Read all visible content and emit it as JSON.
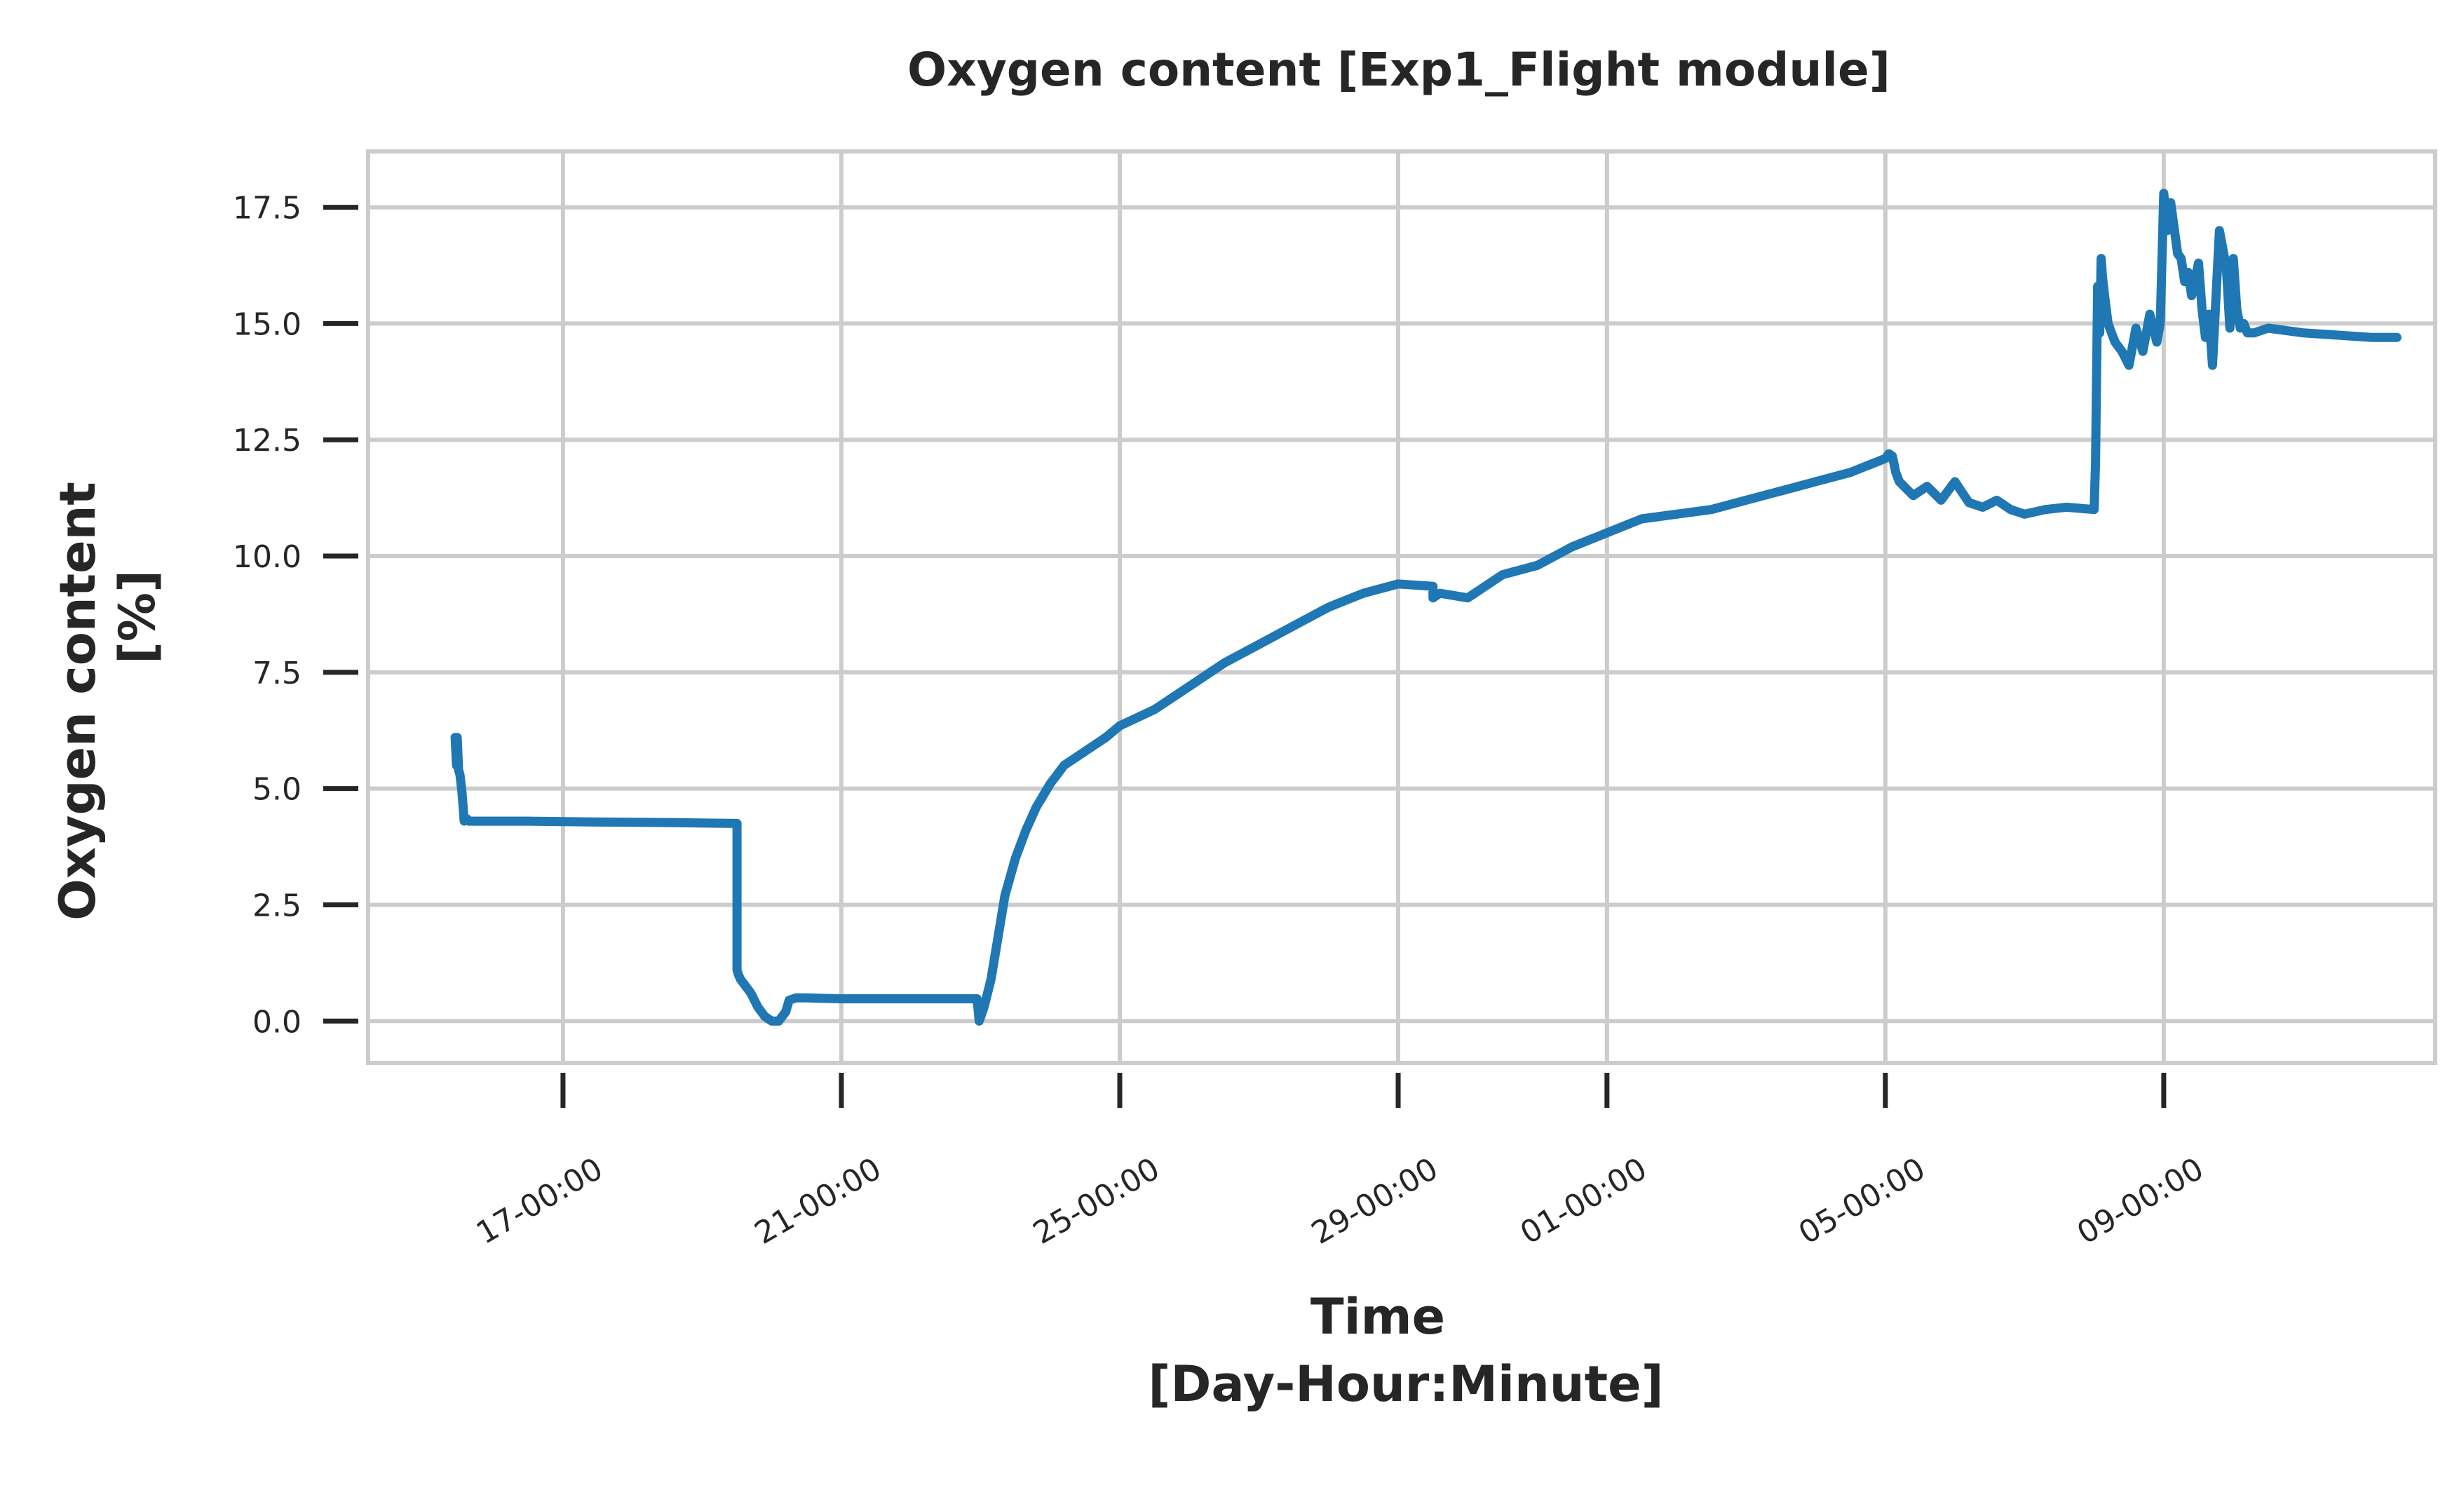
{
  "chart_data": {
    "type": "line",
    "title": "Oxygen content [Exp1_Flight module]",
    "xlabel_lines": [
      "Time",
      "[Day-Hour:Minute]"
    ],
    "ylabel_lines": [
      "Oxygen content",
      "[%]"
    ],
    "x_unit": "day of month (continuous, e.g. 17 = 17-00:00)",
    "xlim": [
      14.2,
      43.9
    ],
    "ylim": [
      -0.9,
      18.7
    ],
    "grid": true,
    "legend": "none",
    "line_color": "#1f77b4",
    "x_ticks": [
      {
        "value": 17,
        "label": "17-00:00"
      },
      {
        "value": 21,
        "label": "21-00:00"
      },
      {
        "value": 25,
        "label": "25-00:00"
      },
      {
        "value": 29,
        "label": "29-00:00"
      },
      {
        "value": 32,
        "label": "01-00:00"
      },
      {
        "value": 36,
        "label": "05-00:00"
      },
      {
        "value": 40,
        "label": "09-00:00"
      }
    ],
    "y_ticks": [
      {
        "value": 0.0,
        "label": "0.0"
      },
      {
        "value": 2.5,
        "label": "2.5"
      },
      {
        "value": 5.0,
        "label": "5.0"
      },
      {
        "value": 7.5,
        "label": "7.5"
      },
      {
        "value": 10.0,
        "label": "10.0"
      },
      {
        "value": 12.5,
        "label": "12.5"
      },
      {
        "value": 15.0,
        "label": "15.0"
      },
      {
        "value": 17.5,
        "label": "17.5"
      }
    ],
    "series": [
      {
        "x": [
          15.45,
          15.47,
          15.48,
          15.5,
          15.52,
          15.55,
          15.58,
          15.62,
          15.65,
          16.5,
          17.5,
          18.5,
          19.5,
          19.5,
          19.52,
          19.55,
          19.7,
          19.8,
          19.9,
          20.0,
          20.1,
          20.2,
          20.25,
          20.35,
          20.5,
          21.0,
          22.0,
          22.95,
          22.98,
          23.05,
          23.15,
          23.25,
          23.35,
          23.5,
          23.65,
          23.8,
          24.0,
          24.2,
          24.5,
          24.8,
          25.0,
          25.5,
          26.0,
          26.5,
          27.0,
          27.5,
          28.0,
          28.5,
          29.0,
          29.5,
          29.5,
          29.6,
          30.0,
          30.5,
          31.0,
          31.5,
          32.0,
          32.5,
          33.0,
          33.5,
          34.0,
          34.5,
          35.0,
          35.5,
          36.0,
          36.05,
          36.1,
          36.15,
          36.2,
          36.4,
          36.6,
          36.8,
          37.0,
          37.2,
          37.4,
          37.6,
          37.8,
          38.0,
          38.3,
          38.6,
          39.0,
          39.02,
          39.05,
          39.08,
          39.1,
          39.12,
          39.15,
          39.2,
          39.25,
          39.3,
          39.4,
          39.5,
          39.6,
          39.7,
          39.8,
          39.9,
          39.95,
          40.0,
          40.05,
          40.1,
          40.2,
          40.25,
          40.3,
          40.35,
          40.4,
          40.5,
          40.55,
          40.6,
          40.65,
          40.7,
          40.8,
          40.9,
          40.95,
          41.0,
          41.05,
          41.1,
          41.15,
          41.2,
          41.3,
          41.5,
          42.0,
          42.5,
          43.0,
          43.35
        ],
        "y": [
          6.1,
          5.5,
          6.1,
          5.4,
          5.3,
          4.9,
          4.3,
          4.35,
          4.3,
          4.3,
          4.28,
          4.27,
          4.25,
          1.1,
          1.0,
          0.9,
          0.6,
          0.3,
          0.1,
          0.0,
          0.0,
          0.2,
          0.45,
          0.5,
          0.5,
          0.48,
          0.48,
          0.48,
          0.0,
          0.3,
          0.9,
          1.8,
          2.7,
          3.5,
          4.1,
          4.6,
          5.1,
          5.5,
          5.8,
          6.1,
          6.35,
          6.7,
          7.2,
          7.7,
          8.1,
          8.5,
          8.9,
          9.2,
          9.4,
          9.35,
          9.1,
          9.2,
          9.1,
          9.6,
          9.8,
          10.2,
          10.5,
          10.8,
          10.9,
          11.0,
          11.2,
          11.4,
          11.6,
          11.8,
          12.1,
          12.2,
          12.15,
          11.8,
          11.6,
          11.3,
          11.5,
          11.2,
          11.6,
          11.15,
          11.05,
          11.2,
          11.0,
          10.9,
          11.0,
          11.05,
          11.0,
          12.0,
          15.8,
          14.8,
          16.4,
          16.0,
          15.6,
          15.0,
          14.8,
          14.6,
          14.4,
          14.1,
          14.9,
          14.4,
          15.2,
          14.6,
          15.0,
          17.8,
          17.0,
          17.6,
          16.5,
          16.4,
          15.9,
          16.1,
          15.6,
          16.3,
          15.3,
          14.7,
          15.2,
          14.1,
          17.0,
          16.2,
          14.9,
          16.4,
          15.3,
          14.9,
          15.0,
          14.8,
          14.8,
          14.9,
          14.8,
          14.75,
          14.7,
          14.7
        ]
      }
    ]
  }
}
